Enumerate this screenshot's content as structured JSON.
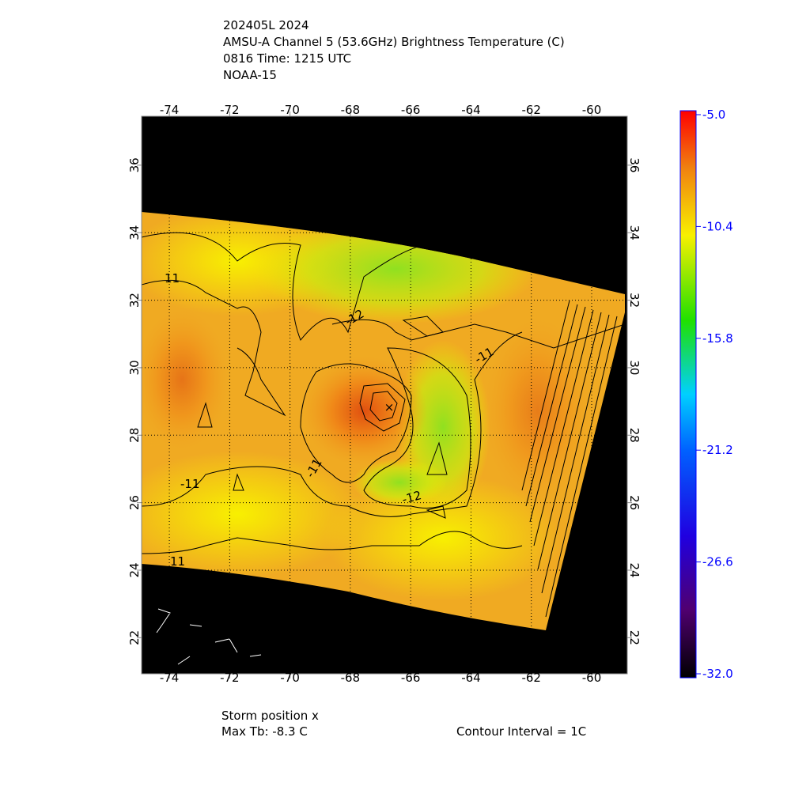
{
  "header": {
    "lines": [
      "202405L 2024",
      "AMSU-A Channel 5 (53.6GHz) Brightness Temperature (C)",
      "0816 Time: 1215 UTC",
      "NOAA-15"
    ]
  },
  "map": {
    "xlim": [
      -74.92,
      -58.82
    ],
    "ylim": [
      20.93,
      37.45
    ],
    "xticks": [
      -74,
      -72,
      -70,
      -68,
      -66,
      -64,
      -62,
      -60
    ],
    "yticks": [
      22,
      24,
      26,
      28,
      30,
      32,
      34,
      36
    ],
    "contour_labels": [
      "11",
      "-12",
      "-11",
      "-11",
      "-11",
      "-12",
      "11"
    ]
  },
  "colorbar": {
    "ylim": [
      -32,
      -5
    ],
    "ticks": [
      {
        "value": -5,
        "label": "-5.0"
      },
      -10.4,
      -15.8,
      -21.2,
      -26.6,
      {
        "value": -32,
        "label": "-32.0"
      }
    ]
  },
  "footer": {
    "storm": "Storm position x",
    "max_tb": "Max Tb:  -8.3    C",
    "interval": "Contour Interval = 1C"
  }
}
